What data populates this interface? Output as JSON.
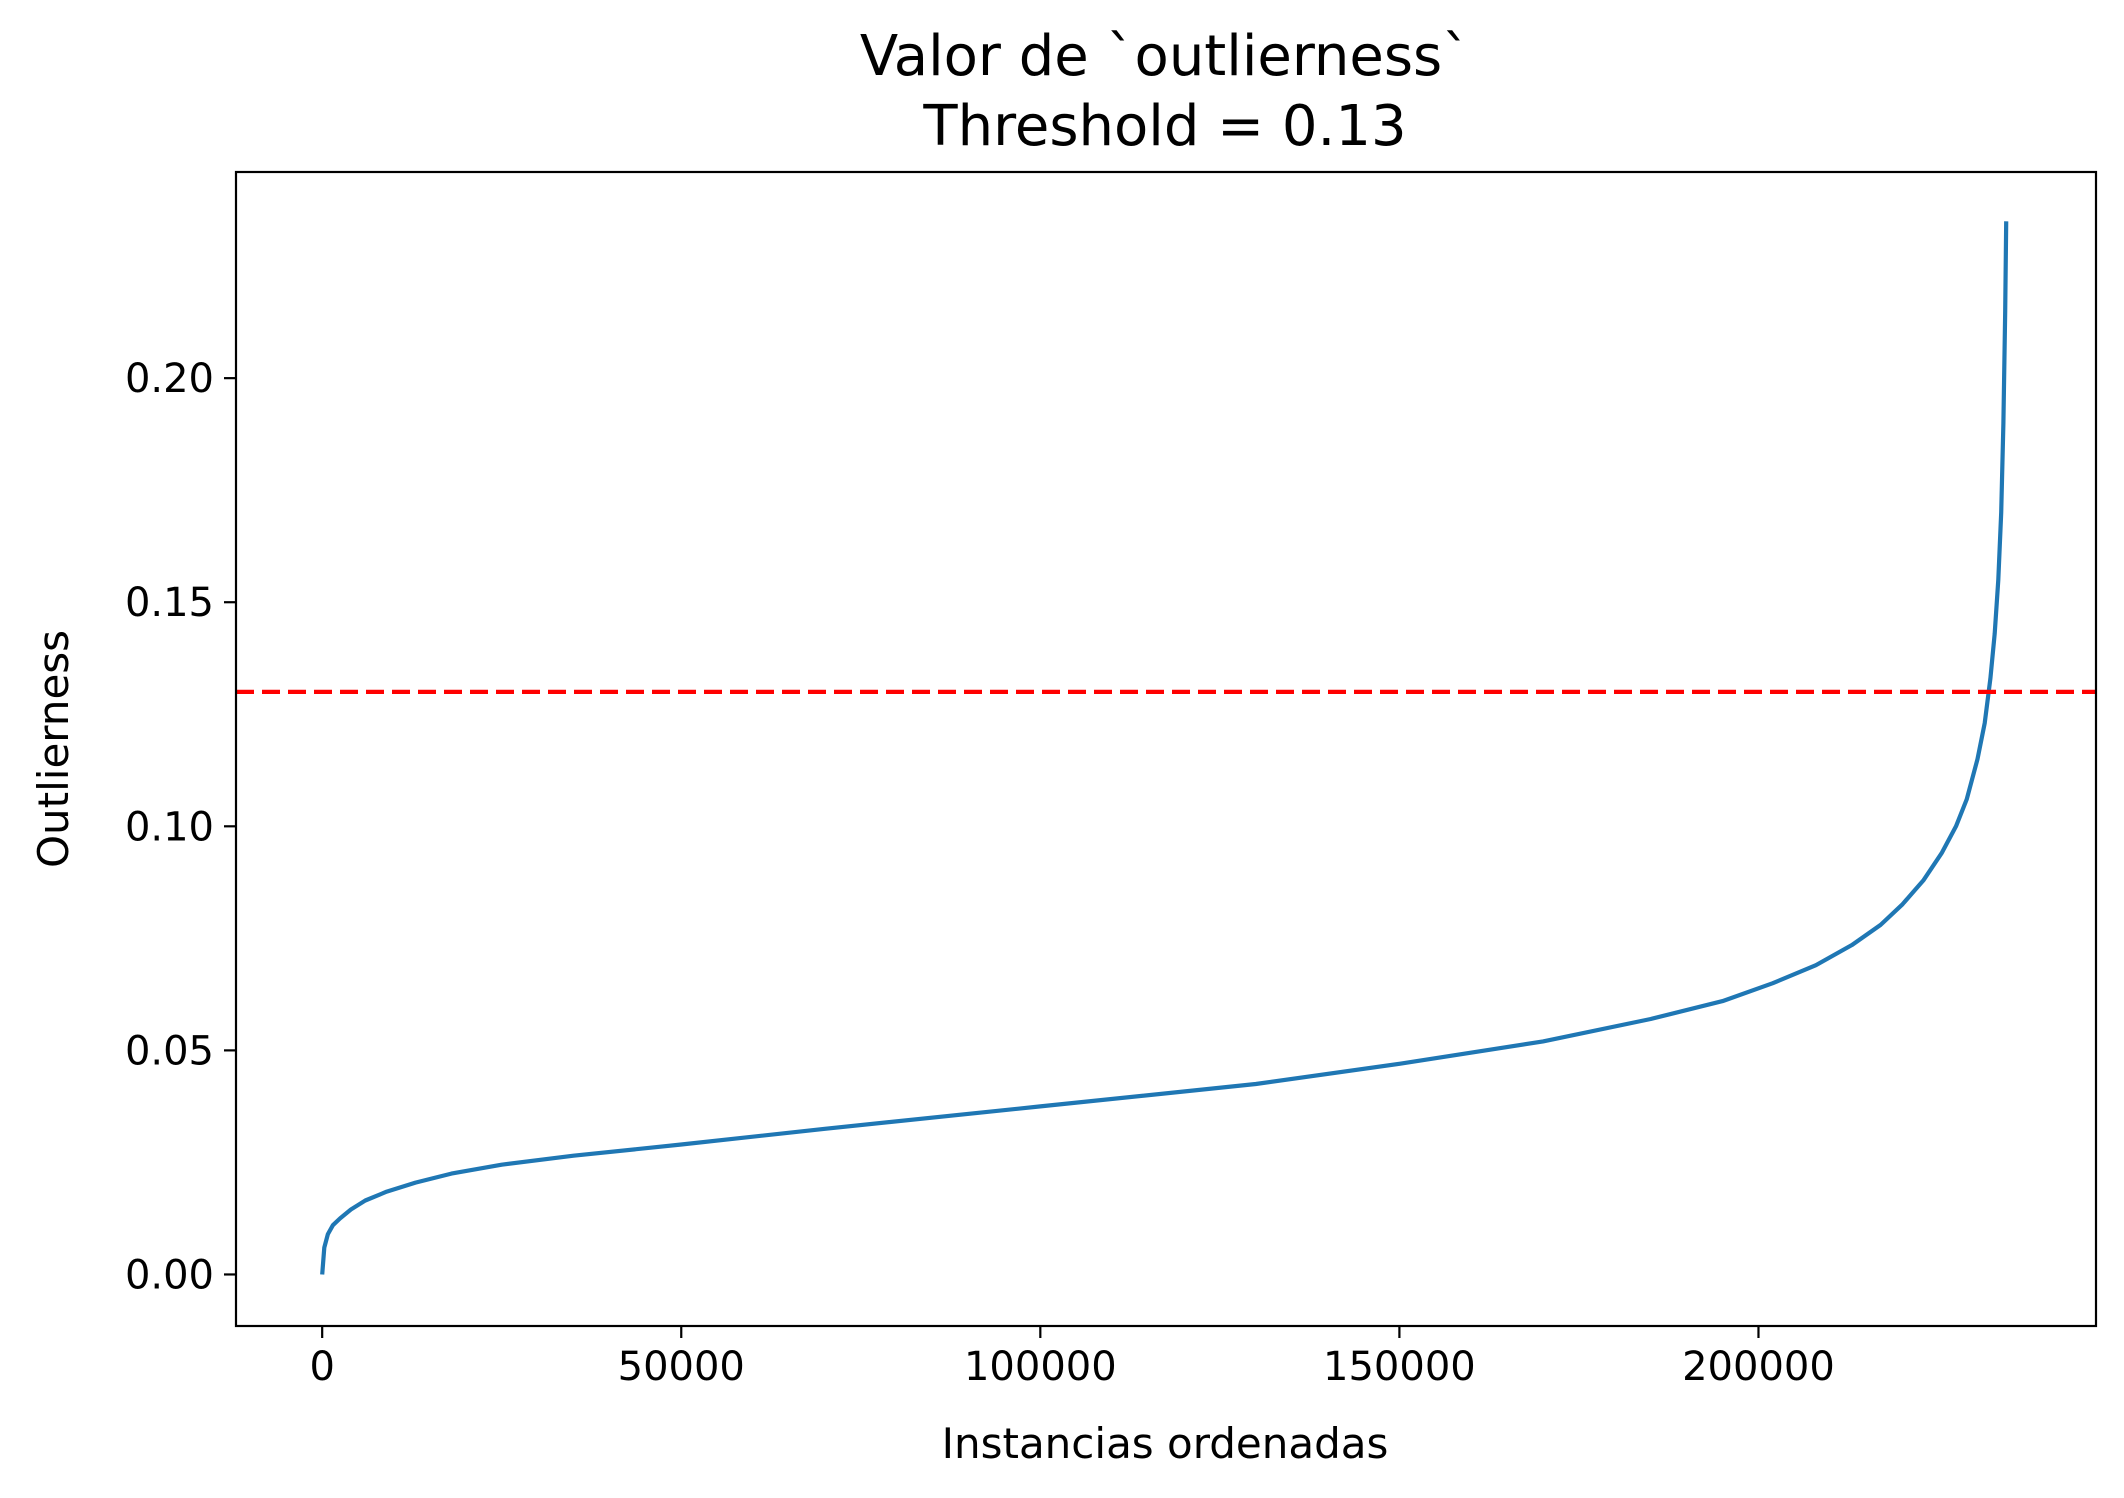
{
  "chart_data": {
    "type": "line",
    "title_lines": [
      "Valor de `outlierness`",
      "Threshold = 0.13"
    ],
    "xlabel": "Instancias ordenadas",
    "ylabel": "Outlierness",
    "xlim": [
      -12000,
      247000
    ],
    "ylim": [
      -0.0115,
      0.246
    ],
    "x_ticks": [
      0,
      50000,
      100000,
      150000,
      200000
    ],
    "x_tick_labels": [
      "0",
      "50000",
      "100000",
      "150000",
      "200000"
    ],
    "y_ticks": [
      0.0,
      0.05,
      0.1,
      0.15,
      0.2
    ],
    "y_tick_labels": [
      "0.00",
      "0.05",
      "0.10",
      "0.15",
      "0.20"
    ],
    "grid": false,
    "threshold": {
      "value": 0.13,
      "color": "#ff0000",
      "style": "dashed"
    },
    "series": [
      {
        "color": "#1f77b4",
        "x": [
          0,
          300,
          800,
          1500,
          2500,
          4000,
          6000,
          9000,
          13000,
          18000,
          25000,
          35000,
          50000,
          70000,
          100000,
          130000,
          150000,
          170000,
          185000,
          195000,
          202000,
          208000,
          213000,
          217000,
          220000,
          223000,
          225500,
          227500,
          229000,
          230500,
          231500,
          232300,
          232900,
          233400,
          233800,
          234100,
          234350,
          234500
        ],
        "y": [
          0.0,
          0.006,
          0.009,
          0.011,
          0.0125,
          0.0145,
          0.0165,
          0.0185,
          0.0205,
          0.0225,
          0.0245,
          0.0265,
          0.029,
          0.0325,
          0.0375,
          0.0425,
          0.047,
          0.052,
          0.057,
          0.061,
          0.065,
          0.069,
          0.0735,
          0.078,
          0.0825,
          0.088,
          0.094,
          0.1,
          0.106,
          0.115,
          0.123,
          0.133,
          0.143,
          0.155,
          0.17,
          0.19,
          0.215,
          0.235
        ]
      }
    ]
  }
}
